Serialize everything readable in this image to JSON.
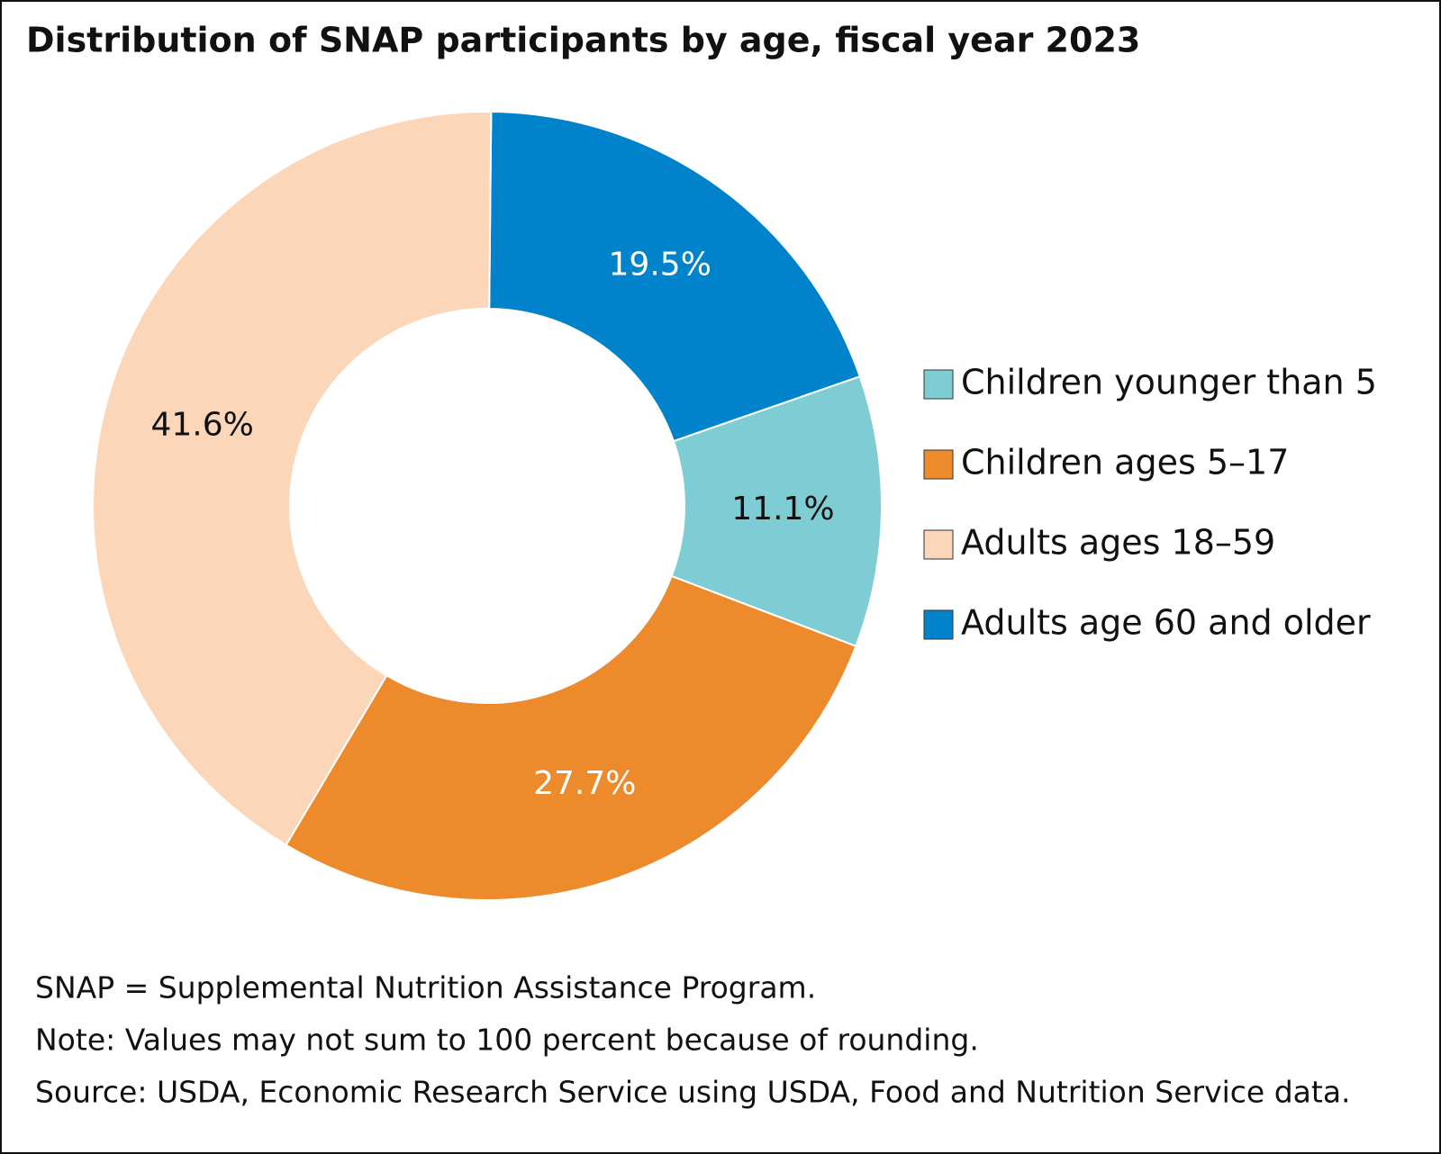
{
  "chart_data": {
    "type": "donut",
    "title": "Distribution of SNAP participants by age, fiscal year 2023",
    "categories": [
      "Children younger than 5",
      "Children ages 5–17",
      "Adults ages 18–59",
      "Adults age 60 and older"
    ],
    "values": [
      11.1,
      27.7,
      41.6,
      19.5
    ],
    "value_labels": [
      "11.1%",
      "27.7%",
      "41.6%",
      "19.5%"
    ],
    "colors": [
      "#7fcdd4",
      "#ec8a2c",
      "#fcd6b8",
      "#0083cb"
    ],
    "legend": "right",
    "notes": [
      "SNAP = Supplemental Nutrition Assistance Program.",
      "Note: Values may not sum to 100 percent because of rounding.",
      "Source: USDA, Economic Research Service using USDA, Food and Nutrition Service data."
    ]
  }
}
